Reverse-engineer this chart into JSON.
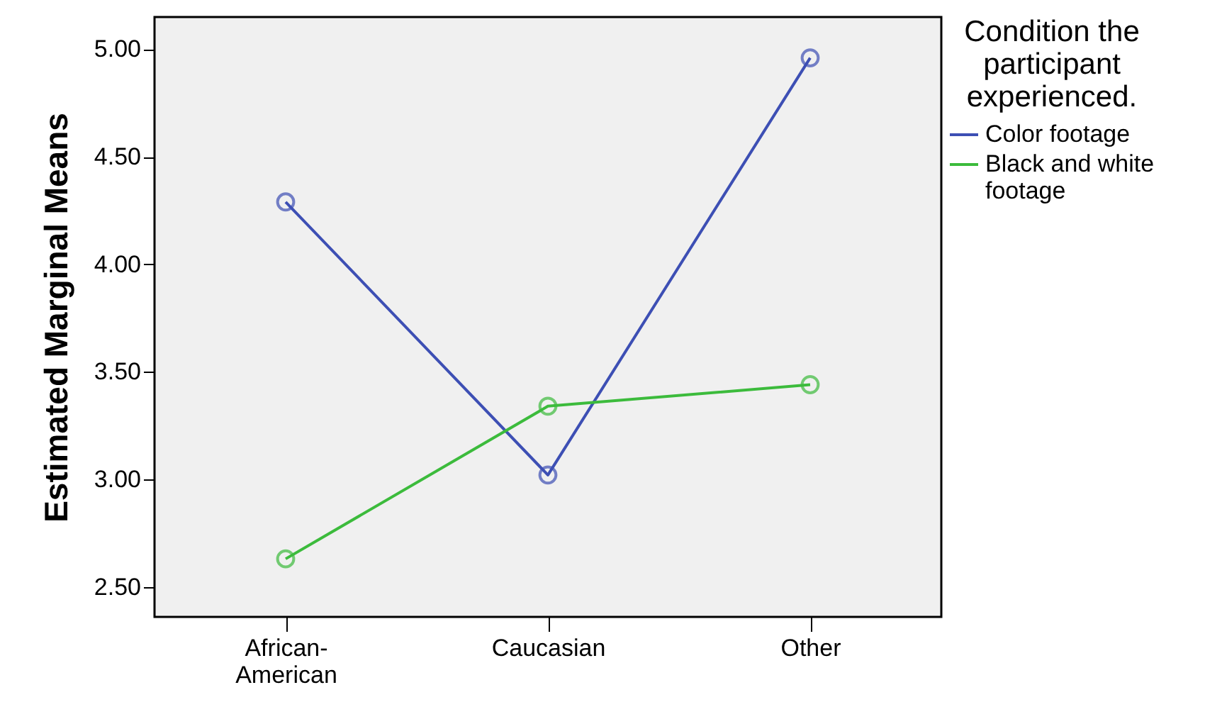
{
  "chart_data": {
    "type": "line",
    "ylabel": "Estimated Marginal Means",
    "legend_title": "Condition the participant experienced.",
    "categories": [
      "African-American",
      "Caucasian",
      "Other"
    ],
    "series": [
      {
        "name": "Color footage",
        "color": "#3d4fb4",
        "values": [
          4.29,
          3.02,
          4.96
        ]
      },
      {
        "name": "Black and white footage",
        "color": "#3cbb3c",
        "values": [
          2.63,
          3.34,
          3.44
        ]
      }
    ],
    "ylim": [
      2.36,
      5.15
    ],
    "yticks": [
      {
        "value": 2.5,
        "label": "2.50"
      },
      {
        "value": 3.0,
        "label": "3.00"
      },
      {
        "value": 3.5,
        "label": "3.50"
      },
      {
        "value": 4.0,
        "label": "4.00"
      },
      {
        "value": 4.5,
        "label": "4.50"
      },
      {
        "value": 5.0,
        "label": "5.00"
      }
    ],
    "grid": false,
    "legend": "right",
    "marker": "circle",
    "line_style": "solid"
  }
}
